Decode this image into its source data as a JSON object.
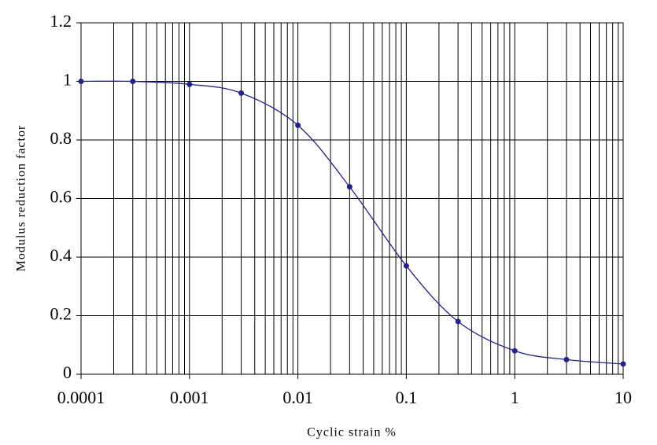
{
  "chart_data": {
    "type": "line",
    "xlabel": "Cyclic strain %",
    "ylabel": "Modulus reduction factor",
    "x": [
      0.0001,
      0.0003,
      0.001,
      0.003,
      0.01,
      0.03,
      0.1,
      0.3,
      1,
      3,
      10
    ],
    "values": [
      1,
      1,
      0.99,
      0.96,
      0.85,
      0.64,
      0.37,
      0.18,
      0.08,
      0.05,
      0.035
    ],
    "color": "#22228a",
    "xscale": "log",
    "xlim": [
      0.0001,
      10
    ],
    "xticks": [
      0.0001,
      0.001,
      0.01,
      0.1,
      1,
      10
    ],
    "ylim": [
      0,
      1.2
    ],
    "yticks": [
      0,
      0.2,
      0.4,
      0.6,
      0.8,
      1,
      1.2
    ],
    "grid": true,
    "smooth": true,
    "markers": true
  }
}
